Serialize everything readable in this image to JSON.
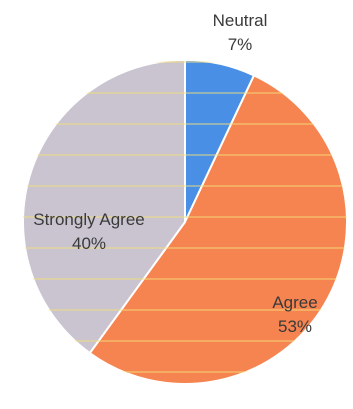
{
  "chart_data": {
    "type": "pie",
    "title": "",
    "slices": [
      {
        "label": "Neutral",
        "value": 7,
        "display": "7%",
        "color": "#4a8fe6"
      },
      {
        "label": "Agree",
        "value": 53,
        "display": "53%",
        "color": "#f58450"
      },
      {
        "label": "Strongly Agree",
        "value": 40,
        "display": "40%",
        "color": "#c9c4d0"
      }
    ],
    "start": "top",
    "direction": "clockwise",
    "legend": "none"
  }
}
